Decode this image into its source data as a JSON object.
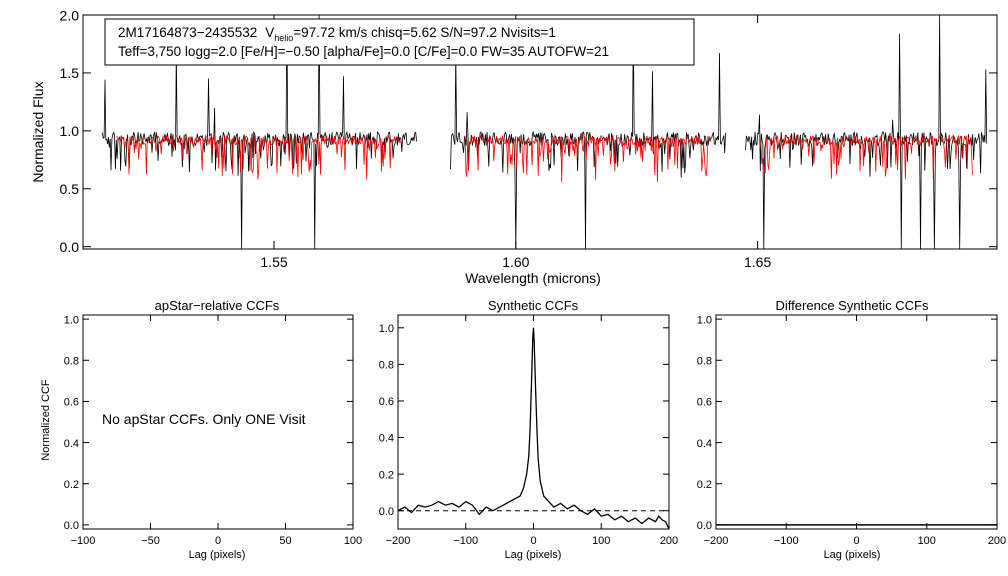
{
  "chart_data": [
    {
      "type": "line",
      "id": "spectrum",
      "title": "",
      "xlabel": "Wavelength (microns)",
      "ylabel": "Normalized Flux",
      "xlim": [
        1.5105,
        1.6995
      ],
      "ylim": [
        -0.02,
        2.0
      ],
      "xticks": [
        1.55,
        1.6,
        1.65
      ],
      "xtick_labels": [
        "1.55",
        "1.60",
        "1.65"
      ],
      "yticks": [
        0.0,
        0.5,
        1.0,
        1.5,
        2.0
      ],
      "ytick_labels": [
        "0.0",
        "0.5",
        "1.0",
        "1.5",
        "2.0"
      ],
      "segments": [
        [
          1.5145,
          1.5795
        ],
        [
          1.5865,
          1.6435
        ],
        [
          1.6475,
          1.6975
        ]
      ],
      "series": [
        {
          "name": "observed",
          "color": "#000000"
        },
        {
          "name": "synthetic best fit",
          "color": "#ff0000"
        }
      ],
      "annotation": {
        "star_id": "2M17164873−2435532",
        "v_label": "V",
        "v_sub": "helio",
        "v_value": "=97.72 km/s  chisq=5.62  S/N=97.2  Nvisits=1",
        "line2": "Teff=3,750 logg=2.0 [Fe/H]=−0.50 [alpha/Fe]=0.0 [C/Fe]=0.0 FW=35 AUTOFW=21"
      }
    },
    {
      "type": "line",
      "id": "apstar",
      "title": "apStar−relative CCFs",
      "xlabel": "Lag (pixels)",
      "ylabel": "Normalized CCF",
      "xlim": [
        -100,
        100
      ],
      "ylim": [
        -0.02,
        1.02
      ],
      "xticks": [
        -100,
        -50,
        0,
        50,
        100
      ],
      "xtick_labels": [
        "−100",
        "−50",
        "0",
        "50",
        "100"
      ],
      "yticks": [
        0.0,
        0.2,
        0.4,
        0.6,
        0.8,
        1.0
      ],
      "ytick_labels": [
        "0.0",
        "0.2",
        "0.4",
        "0.6",
        "0.8",
        "1.0"
      ],
      "message": "No apStar CCFs.  Only ONE Visit",
      "series": []
    },
    {
      "type": "line",
      "id": "synthetic",
      "title": "Synthetic CCFs",
      "xlabel": "Lag (pixels)",
      "ylabel": "",
      "xlim": [
        -200,
        200
      ],
      "ylim": [
        -0.1,
        1.07
      ],
      "xticks": [
        -200,
        -100,
        0,
        100,
        200
      ],
      "xtick_labels": [
        "−200",
        "−100",
        "0",
        "100",
        "200"
      ],
      "yticks": [
        0.0,
        0.2,
        0.4,
        0.6,
        0.8,
        1.0
      ],
      "ytick_labels": [
        "0.0",
        "0.2",
        "0.4",
        "0.6",
        "0.8",
        "1.0"
      ],
      "zero_line": 0,
      "series": [
        {
          "name": "CCF",
          "x": [
            -200,
            -190,
            -180,
            -170,
            -160,
            -150,
            -140,
            -130,
            -120,
            -110,
            -100,
            -90,
            -80,
            -70,
            -60,
            -50,
            -40,
            -30,
            -20,
            -15,
            -10,
            -7,
            -5,
            -3,
            -1,
            0,
            1,
            3,
            5,
            7,
            10,
            15,
            20,
            30,
            40,
            50,
            60,
            70,
            80,
            90,
            100,
            110,
            120,
            130,
            140,
            150,
            160,
            170,
            180,
            185,
            190,
            195,
            200
          ],
          "y": [
            0.0,
            0.02,
            -0.01,
            0.03,
            0.02,
            0.03,
            0.05,
            0.03,
            0.04,
            0.02,
            0.05,
            0.03,
            -0.02,
            0.02,
            0.0,
            0.02,
            0.04,
            0.06,
            0.08,
            0.12,
            0.2,
            0.3,
            0.45,
            0.7,
            0.95,
            1.0,
            0.92,
            0.68,
            0.45,
            0.28,
            0.16,
            0.08,
            0.06,
            0.02,
            0.04,
            0.01,
            0.03,
            0.0,
            -0.02,
            0.01,
            -0.03,
            -0.02,
            -0.05,
            -0.03,
            -0.06,
            -0.04,
            -0.07,
            -0.04,
            -0.06,
            -0.03,
            -0.05,
            -0.06,
            -0.1
          ]
        }
      ]
    },
    {
      "type": "line",
      "id": "difference",
      "title": "Difference Synthetic CCFs",
      "xlabel": "Lag (pixels)",
      "ylabel": "",
      "xlim": [
        -200,
        200
      ],
      "ylim": [
        -0.02,
        1.02
      ],
      "xticks": [
        -200,
        -100,
        0,
        100,
        200
      ],
      "xtick_labels": [
        "−200",
        "−100",
        "0",
        "100",
        "200"
      ],
      "yticks": [
        0.0,
        0.2,
        0.4,
        0.6,
        0.8,
        1.0
      ],
      "ytick_labels": [
        "0.0",
        "0.2",
        "0.4",
        "0.6",
        "0.8",
        "1.0"
      ],
      "series": [
        {
          "name": "difference",
          "x": [
            -200,
            200
          ],
          "y": [
            0.0,
            0.0
          ]
        }
      ]
    }
  ]
}
